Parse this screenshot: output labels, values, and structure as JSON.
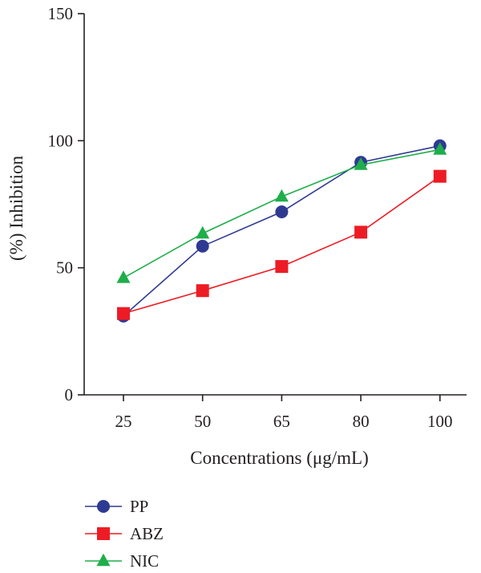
{
  "chart_data": {
    "type": "line",
    "categories": [
      "25",
      "50",
      "65",
      "80",
      "100"
    ],
    "xlabel": "Concentrations (μg/mL)",
    "ylabel": "(%) Inhibition",
    "ylim": [
      0,
      150
    ],
    "yticks": [
      0,
      50,
      100,
      150
    ],
    "grid": false,
    "legend_position": "bottom-left",
    "series": [
      {
        "name": "PP",
        "marker": "circle",
        "color": "#2e3a92",
        "values": [
          31,
          58.5,
          72,
          91.5,
          98
        ]
      },
      {
        "name": "ABZ",
        "marker": "square",
        "color": "#ed1c24",
        "values": [
          32,
          41,
          50.5,
          64,
          86
        ]
      },
      {
        "name": "NIC",
        "marker": "triangle",
        "color": "#1fae4b",
        "values": [
          46,
          63.5,
          78,
          90.5,
          96.5
        ]
      }
    ]
  }
}
